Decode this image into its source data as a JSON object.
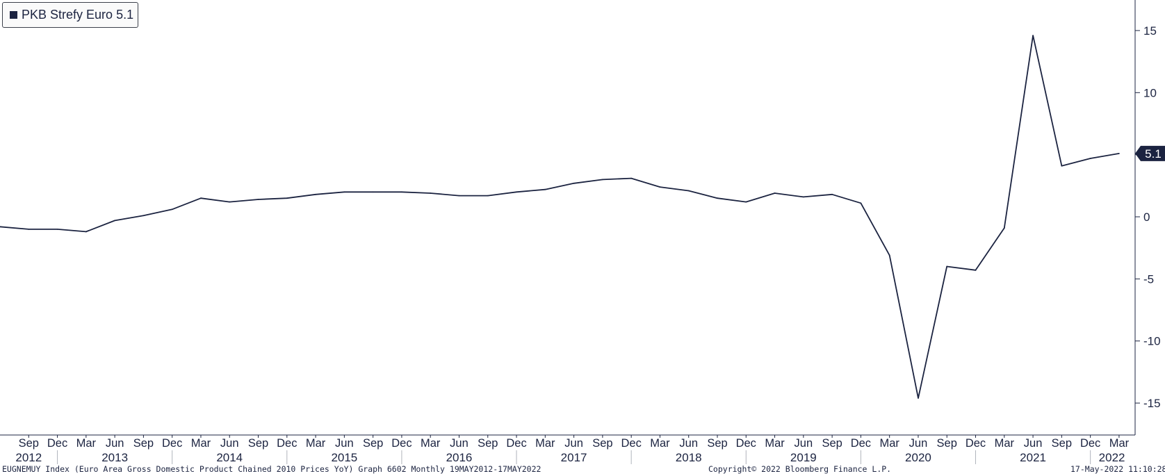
{
  "legend": {
    "label": "PKB Strefy Euro",
    "value": "5.1"
  },
  "footer": {
    "left": "EUGNEMUY Index (Euro Area Gross Domestic Product Chained 2010 Prices YoY) Graph 6602  Monthly 19MAY2012-17MAY2022",
    "center": "Copyright© 2022 Bloomberg Finance L.P.",
    "right": "17-May-2022 11:10:28"
  },
  "colors": {
    "line": "#1b2340",
    "axis": "#1b2340",
    "badge_bg": "#1b2340",
    "badge_text": "#ffffff"
  },
  "chart_data": {
    "type": "line",
    "title": "",
    "xlabel": "",
    "ylabel": "",
    "ylim": [
      -17,
      17.5
    ],
    "yticks": [
      15,
      10,
      5,
      0,
      -5,
      -10,
      -15
    ],
    "y_axis_position": "right",
    "grid": false,
    "legend_position": "top-left",
    "last_value_label": "5.1",
    "quarter_labels": [
      "Sep",
      "Dec",
      "Mar",
      "Jun",
      "Sep",
      "Dec",
      "Mar",
      "Jun",
      "Sep",
      "Dec",
      "Mar",
      "Jun",
      "Sep",
      "Dec",
      "Mar",
      "Jun",
      "Sep",
      "Dec",
      "Mar",
      "Jun",
      "Sep",
      "Dec",
      "Mar",
      "Jun",
      "Sep",
      "Dec",
      "Mar",
      "Jun",
      "Sep",
      "Dec",
      "Mar",
      "Jun",
      "Sep",
      "Dec",
      "Mar",
      "Jun",
      "Sep",
      "Dec",
      "Mar"
    ],
    "year_labels": [
      "2012",
      "2013",
      "2014",
      "2015",
      "2016",
      "2017",
      "2018",
      "2019",
      "2020",
      "2021",
      "2022"
    ],
    "series": [
      {
        "name": "PKB Strefy Euro",
        "x": [
          "Jun 2012",
          "Sep 2012",
          "Dec 2012",
          "Mar 2013",
          "Jun 2013",
          "Sep 2013",
          "Dec 2013",
          "Mar 2014",
          "Jun 2014",
          "Sep 2014",
          "Dec 2014",
          "Mar 2015",
          "Jun 2015",
          "Sep 2015",
          "Dec 2015",
          "Mar 2016",
          "Jun 2016",
          "Sep 2016",
          "Dec 2016",
          "Mar 2017",
          "Jun 2017",
          "Sep 2017",
          "Dec 2017",
          "Mar 2018",
          "Jun 2018",
          "Sep 2018",
          "Dec 2018",
          "Mar 2019",
          "Jun 2019",
          "Sep 2019",
          "Dec 2019",
          "Mar 2020",
          "Jun 2020",
          "Sep 2020",
          "Dec 2020",
          "Mar 2021",
          "Jun 2021",
          "Sep 2021",
          "Dec 2021",
          "Mar 2022"
        ],
        "values": [
          -0.8,
          -1.0,
          -1.0,
          -1.2,
          -0.3,
          0.1,
          0.6,
          1.5,
          1.2,
          1.4,
          1.5,
          1.8,
          2.0,
          2.0,
          2.0,
          1.9,
          1.7,
          1.7,
          2.0,
          2.2,
          2.7,
          3.0,
          3.1,
          2.4,
          2.1,
          1.5,
          1.2,
          1.9,
          1.6,
          1.8,
          1.1,
          -3.1,
          -14.6,
          -4.0,
          -4.3,
          -0.9,
          14.6,
          4.1,
          4.7,
          5.1
        ]
      }
    ]
  }
}
